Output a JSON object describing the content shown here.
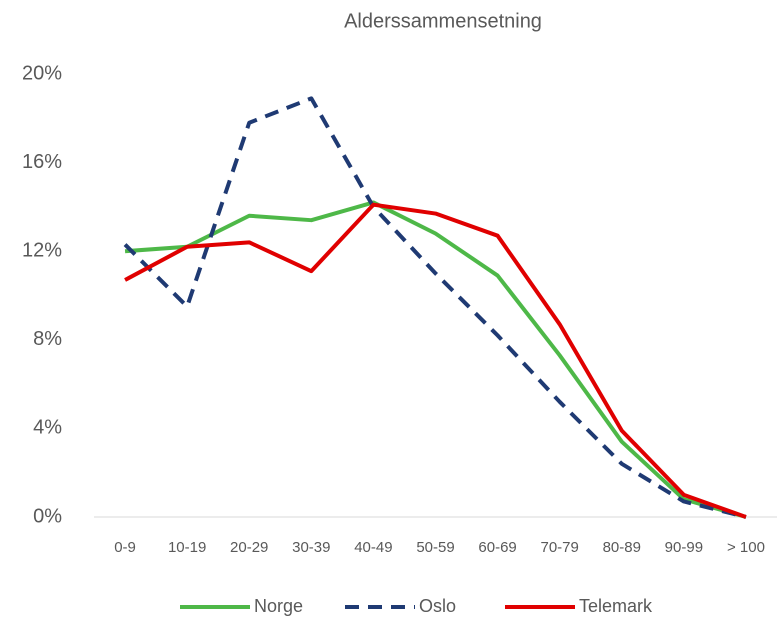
{
  "chart_data": {
    "type": "line",
    "title": "Alderssammensetning",
    "categories": [
      "0-9",
      "10-19",
      "20-29",
      "30-39",
      "40-49",
      "50-59",
      "60-69",
      "70-79",
      "80-89",
      "90-99",
      "> 100"
    ],
    "series": [
      {
        "name": "Norge",
        "color": "#4eb848",
        "line_style": "solid",
        "values": [
          12.0,
          12.2,
          13.6,
          13.4,
          14.2,
          12.8,
          10.9,
          7.3,
          3.4,
          0.8,
          0.0
        ]
      },
      {
        "name": "Oslo",
        "color": "#1f3a73",
        "line_style": "dashed",
        "values": [
          12.3,
          9.5,
          17.8,
          18.9,
          14.0,
          11.0,
          8.2,
          5.2,
          2.4,
          0.7,
          0.0
        ]
      },
      {
        "name": "Telemark",
        "color": "#e00000",
        "line_style": "solid",
        "values": [
          10.7,
          12.2,
          12.4,
          11.1,
          14.1,
          13.7,
          12.7,
          8.7,
          3.9,
          1.0,
          0.0
        ]
      }
    ],
    "ylim": [
      0,
      20
    ],
    "yticks": [
      {
        "value": 0,
        "label": "0%"
      },
      {
        "value": 4,
        "label": "4%"
      },
      {
        "value": 8,
        "label": "8%"
      },
      {
        "value": 12,
        "label": "12%"
      },
      {
        "value": 16,
        "label": "16%"
      },
      {
        "value": 20,
        "label": "20%"
      }
    ],
    "grid": false,
    "legend": "bottom"
  }
}
